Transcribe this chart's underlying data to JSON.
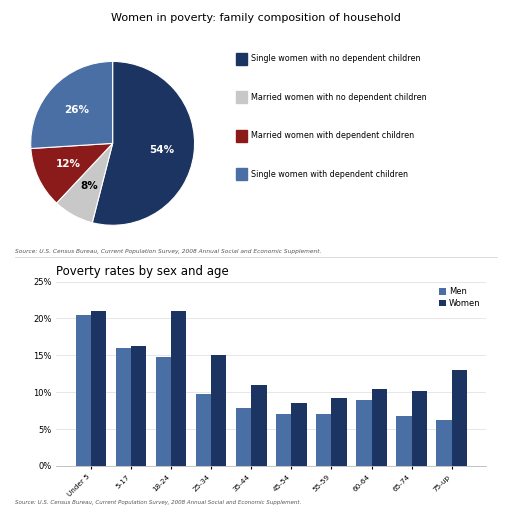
{
  "pie_title": "Women in poverty: family composition of household",
  "pie_labels": [
    "Single women with no dependent children",
    "Married women with no dependent children",
    "Married women with dependent children",
    "Single women with dependent children"
  ],
  "pie_values": [
    54,
    8,
    12,
    26
  ],
  "pie_colors": [
    "#1c3461",
    "#c8c8c8",
    "#8b1a1a",
    "#4a6fa5"
  ],
  "pie_pct_labels": [
    "54%",
    "8%",
    "12%",
    "26%"
  ],
  "pie_pct_colors": [
    "white",
    "black",
    "white",
    "white"
  ],
  "pie_source": "Source: U.S. Census Bureau, Current Population Survey, 2008 Annual Social and Economic Supplement.",
  "bar_title": "Poverty rates by sex and age",
  "bar_categories": [
    "Under 5",
    "5-17",
    "18-24",
    "25-34",
    "35-44",
    "45-54",
    "55-59",
    "60-64",
    "65-74",
    "75-up"
  ],
  "men_values": [
    20.5,
    16.0,
    14.8,
    9.8,
    7.8,
    7.0,
    7.0,
    9.0,
    6.8,
    6.2
  ],
  "women_values": [
    21.0,
    16.3,
    21.0,
    15.0,
    11.0,
    8.5,
    9.2,
    10.5,
    10.2,
    13.0
  ],
  "men_color": "#4a6fa5",
  "women_color": "#1c3461",
  "bar_ylim": [
    0,
    25
  ],
  "bar_yticks": [
    0,
    5,
    10,
    15,
    20,
    25
  ],
  "bar_source": "Source: U.S. Census Bureau, Current Population Survey, 2008 Annual Social and Economic Supplement.",
  "background_color": "#ffffff"
}
